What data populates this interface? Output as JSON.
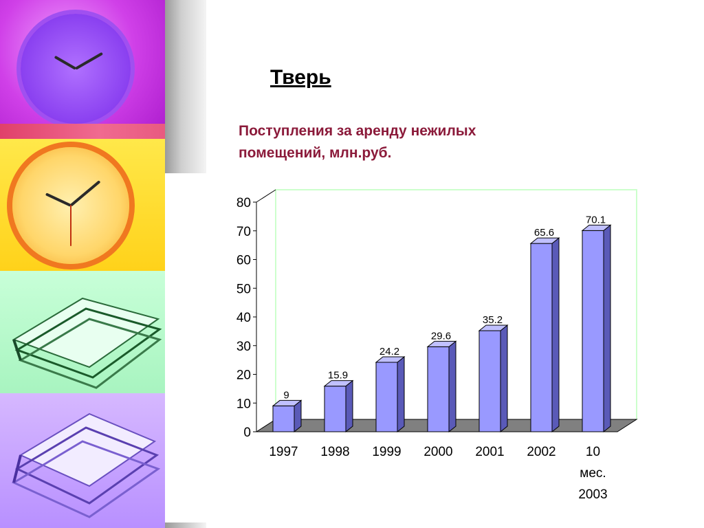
{
  "slide": {
    "title": "Тверь",
    "subtitle": "Поступления за аренду нежилых помещений,   млн.руб."
  },
  "decor": {
    "clock1_icon": "purple-clock-icon",
    "clock2_icon": "orange-clock-icon",
    "papers1_icon": "green-paper-stack-icon",
    "papers2_icon": "violet-paper-stack-icon"
  },
  "chart_data": {
    "type": "bar",
    "title": "",
    "xlabel": "",
    "ylabel": "",
    "categories": [
      "1997",
      "1998",
      "1999",
      "2000",
      "2001",
      "2002",
      "10 мес. 2003"
    ],
    "values": [
      9,
      15.9,
      24.2,
      29.6,
      35.2,
      65.6,
      70.1
    ],
    "data_labels": [
      "9",
      "15.9",
      "24.2",
      "29.6",
      "35.2",
      "65.6",
      "70.1"
    ],
    "ylim": [
      0,
      80
    ],
    "yticks": [
      0,
      10,
      20,
      30,
      40,
      50,
      60,
      70,
      80
    ],
    "grid": false,
    "legend": "none",
    "colors": {
      "bar_front": "#9999ff",
      "bar_side": "#5a5ab8",
      "bar_top": "#c0c0ff",
      "floor": "#808080",
      "back_wall_border": "#ccffcc"
    }
  }
}
